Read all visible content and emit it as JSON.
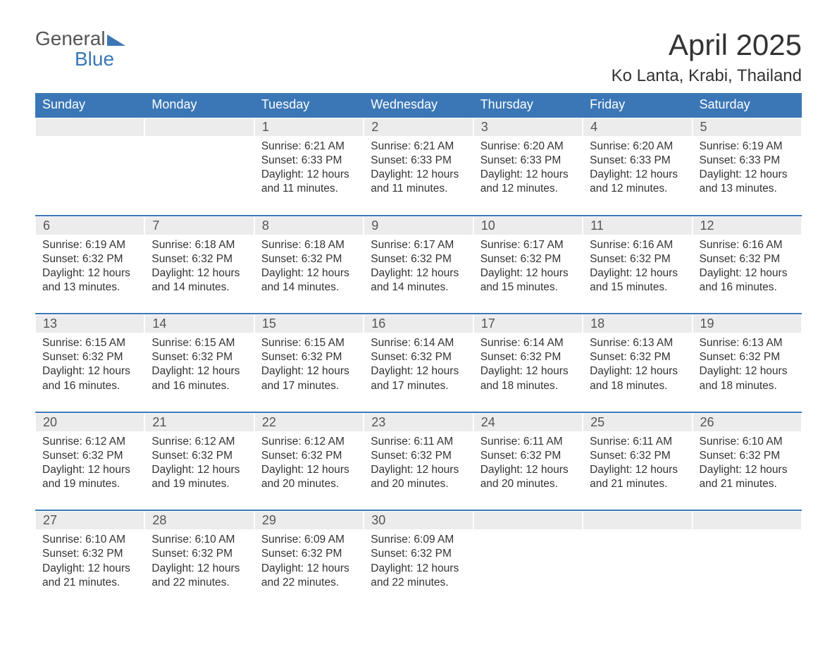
{
  "logo": {
    "word1": "General",
    "word2": "Blue"
  },
  "title": "April 2025",
  "subtitle": "Ko Lanta, Krabi, Thailand",
  "colors": {
    "header_bg": "#3b77b6",
    "header_text": "#ffffff",
    "daynum_bg": "#ececec",
    "row_border": "#3b77b6",
    "text": "#333333",
    "logo_accent": "#3b77b6",
    "logo_text": "#555555",
    "page_bg": "#ffffff"
  },
  "fonts": {
    "title_pt": 42,
    "subtitle_pt": 24,
    "header_pt": 18,
    "body_pt": 15.5
  },
  "weekdays": [
    "Sunday",
    "Monday",
    "Tuesday",
    "Wednesday",
    "Thursday",
    "Friday",
    "Saturday"
  ],
  "weeks": [
    [
      null,
      null,
      {
        "n": "1",
        "sunrise": "Sunrise: 6:21 AM",
        "sunset": "Sunset: 6:33 PM",
        "d1": "Daylight: 12 hours",
        "d2": "and 11 minutes."
      },
      {
        "n": "2",
        "sunrise": "Sunrise: 6:21 AM",
        "sunset": "Sunset: 6:33 PM",
        "d1": "Daylight: 12 hours",
        "d2": "and 11 minutes."
      },
      {
        "n": "3",
        "sunrise": "Sunrise: 6:20 AM",
        "sunset": "Sunset: 6:33 PM",
        "d1": "Daylight: 12 hours",
        "d2": "and 12 minutes."
      },
      {
        "n": "4",
        "sunrise": "Sunrise: 6:20 AM",
        "sunset": "Sunset: 6:33 PM",
        "d1": "Daylight: 12 hours",
        "d2": "and 12 minutes."
      },
      {
        "n": "5",
        "sunrise": "Sunrise: 6:19 AM",
        "sunset": "Sunset: 6:33 PM",
        "d1": "Daylight: 12 hours",
        "d2": "and 13 minutes."
      }
    ],
    [
      {
        "n": "6",
        "sunrise": "Sunrise: 6:19 AM",
        "sunset": "Sunset: 6:32 PM",
        "d1": "Daylight: 12 hours",
        "d2": "and 13 minutes."
      },
      {
        "n": "7",
        "sunrise": "Sunrise: 6:18 AM",
        "sunset": "Sunset: 6:32 PM",
        "d1": "Daylight: 12 hours",
        "d2": "and 14 minutes."
      },
      {
        "n": "8",
        "sunrise": "Sunrise: 6:18 AM",
        "sunset": "Sunset: 6:32 PM",
        "d1": "Daylight: 12 hours",
        "d2": "and 14 minutes."
      },
      {
        "n": "9",
        "sunrise": "Sunrise: 6:17 AM",
        "sunset": "Sunset: 6:32 PM",
        "d1": "Daylight: 12 hours",
        "d2": "and 14 minutes."
      },
      {
        "n": "10",
        "sunrise": "Sunrise: 6:17 AM",
        "sunset": "Sunset: 6:32 PM",
        "d1": "Daylight: 12 hours",
        "d2": "and 15 minutes."
      },
      {
        "n": "11",
        "sunrise": "Sunrise: 6:16 AM",
        "sunset": "Sunset: 6:32 PM",
        "d1": "Daylight: 12 hours",
        "d2": "and 15 minutes."
      },
      {
        "n": "12",
        "sunrise": "Sunrise: 6:16 AM",
        "sunset": "Sunset: 6:32 PM",
        "d1": "Daylight: 12 hours",
        "d2": "and 16 minutes."
      }
    ],
    [
      {
        "n": "13",
        "sunrise": "Sunrise: 6:15 AM",
        "sunset": "Sunset: 6:32 PM",
        "d1": "Daylight: 12 hours",
        "d2": "and 16 minutes."
      },
      {
        "n": "14",
        "sunrise": "Sunrise: 6:15 AM",
        "sunset": "Sunset: 6:32 PM",
        "d1": "Daylight: 12 hours",
        "d2": "and 16 minutes."
      },
      {
        "n": "15",
        "sunrise": "Sunrise: 6:15 AM",
        "sunset": "Sunset: 6:32 PM",
        "d1": "Daylight: 12 hours",
        "d2": "and 17 minutes."
      },
      {
        "n": "16",
        "sunrise": "Sunrise: 6:14 AM",
        "sunset": "Sunset: 6:32 PM",
        "d1": "Daylight: 12 hours",
        "d2": "and 17 minutes."
      },
      {
        "n": "17",
        "sunrise": "Sunrise: 6:14 AM",
        "sunset": "Sunset: 6:32 PM",
        "d1": "Daylight: 12 hours",
        "d2": "and 18 minutes."
      },
      {
        "n": "18",
        "sunrise": "Sunrise: 6:13 AM",
        "sunset": "Sunset: 6:32 PM",
        "d1": "Daylight: 12 hours",
        "d2": "and 18 minutes."
      },
      {
        "n": "19",
        "sunrise": "Sunrise: 6:13 AM",
        "sunset": "Sunset: 6:32 PM",
        "d1": "Daylight: 12 hours",
        "d2": "and 18 minutes."
      }
    ],
    [
      {
        "n": "20",
        "sunrise": "Sunrise: 6:12 AM",
        "sunset": "Sunset: 6:32 PM",
        "d1": "Daylight: 12 hours",
        "d2": "and 19 minutes."
      },
      {
        "n": "21",
        "sunrise": "Sunrise: 6:12 AM",
        "sunset": "Sunset: 6:32 PM",
        "d1": "Daylight: 12 hours",
        "d2": "and 19 minutes."
      },
      {
        "n": "22",
        "sunrise": "Sunrise: 6:12 AM",
        "sunset": "Sunset: 6:32 PM",
        "d1": "Daylight: 12 hours",
        "d2": "and 20 minutes."
      },
      {
        "n": "23",
        "sunrise": "Sunrise: 6:11 AM",
        "sunset": "Sunset: 6:32 PM",
        "d1": "Daylight: 12 hours",
        "d2": "and 20 minutes."
      },
      {
        "n": "24",
        "sunrise": "Sunrise: 6:11 AM",
        "sunset": "Sunset: 6:32 PM",
        "d1": "Daylight: 12 hours",
        "d2": "and 20 minutes."
      },
      {
        "n": "25",
        "sunrise": "Sunrise: 6:11 AM",
        "sunset": "Sunset: 6:32 PM",
        "d1": "Daylight: 12 hours",
        "d2": "and 21 minutes."
      },
      {
        "n": "26",
        "sunrise": "Sunrise: 6:10 AM",
        "sunset": "Sunset: 6:32 PM",
        "d1": "Daylight: 12 hours",
        "d2": "and 21 minutes."
      }
    ],
    [
      {
        "n": "27",
        "sunrise": "Sunrise: 6:10 AM",
        "sunset": "Sunset: 6:32 PM",
        "d1": "Daylight: 12 hours",
        "d2": "and 21 minutes."
      },
      {
        "n": "28",
        "sunrise": "Sunrise: 6:10 AM",
        "sunset": "Sunset: 6:32 PM",
        "d1": "Daylight: 12 hours",
        "d2": "and 22 minutes."
      },
      {
        "n": "29",
        "sunrise": "Sunrise: 6:09 AM",
        "sunset": "Sunset: 6:32 PM",
        "d1": "Daylight: 12 hours",
        "d2": "and 22 minutes."
      },
      {
        "n": "30",
        "sunrise": "Sunrise: 6:09 AM",
        "sunset": "Sunset: 6:32 PM",
        "d1": "Daylight: 12 hours",
        "d2": "and 22 minutes."
      },
      null,
      null,
      null
    ]
  ]
}
